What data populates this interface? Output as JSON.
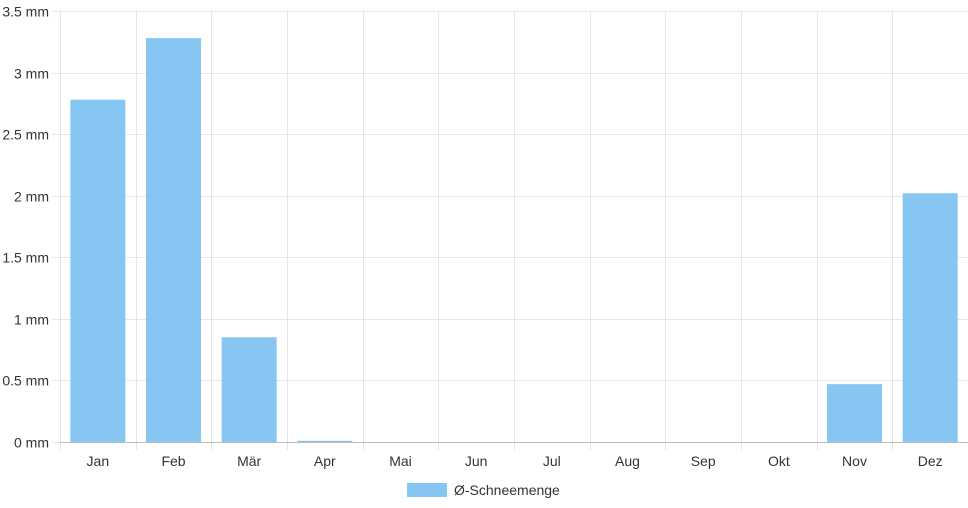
{
  "chart_data": {
    "type": "bar",
    "categories": [
      "Jan",
      "Feb",
      "Mär",
      "Apr",
      "Mai",
      "Jun",
      "Jul",
      "Aug",
      "Sep",
      "Okt",
      "Nov",
      "Dez"
    ],
    "series": [
      {
        "name": "Ø-Schneemenge",
        "values": [
          2.78,
          3.28,
          0.85,
          0.01,
          0,
          0,
          0,
          0,
          0,
          0,
          0.47,
          2.02
        ]
      }
    ],
    "ylim": [
      0,
      3.5
    ],
    "yticks": [
      0,
      0.5,
      1,
      1.5,
      2,
      2.5,
      3,
      3.5
    ],
    "ytick_labels": [
      "0 mm",
      "0.5 mm",
      "1 mm",
      "1.5 mm",
      "2 mm",
      "2.5 mm",
      "3 mm",
      "3.5 mm"
    ],
    "grid": true,
    "legend_position": "bottom-center",
    "colors": {
      "bar": "#87c6f2",
      "grid": "#e6e6e6",
      "axis": "#bdbdbd",
      "text": "#333333"
    }
  }
}
